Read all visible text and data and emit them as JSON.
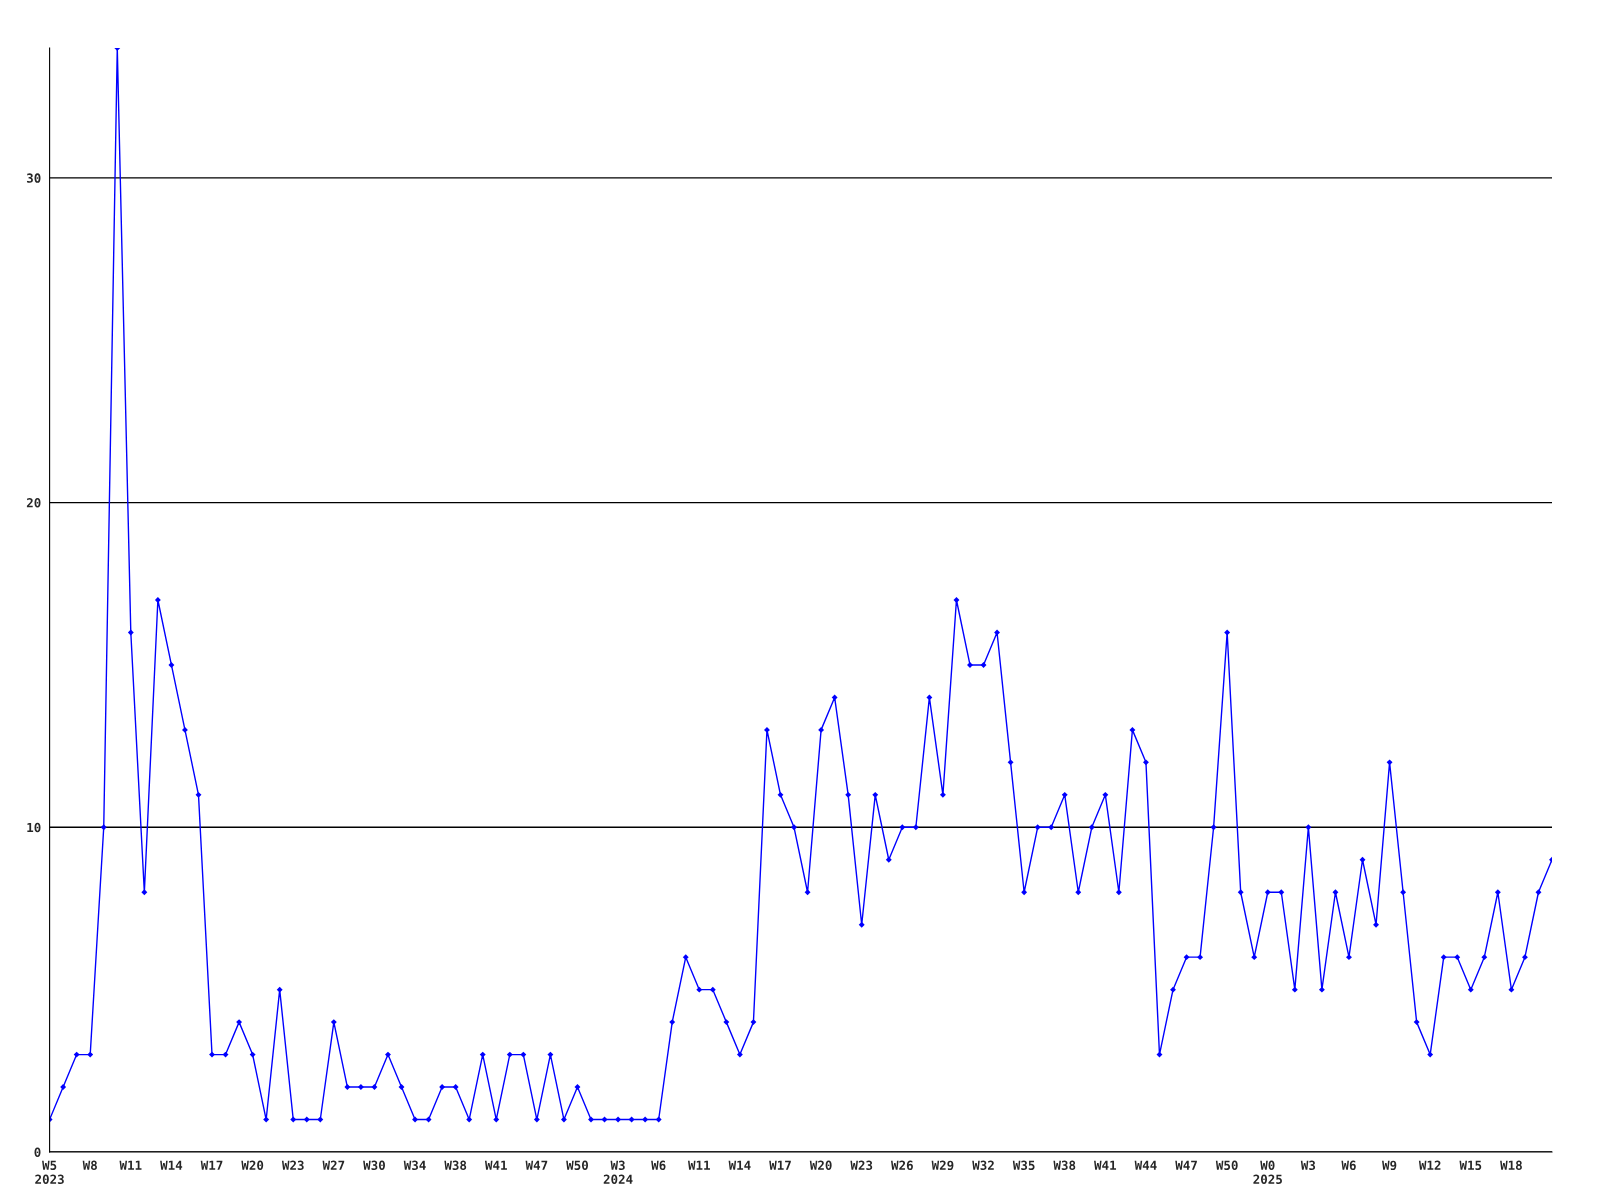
{
  "chart_data": {
    "type": "line",
    "categories": [
      "W5\n2023",
      null,
      null,
      "W8",
      null,
      null,
      "W11",
      null,
      null,
      "W14",
      null,
      null,
      "W17",
      null,
      null,
      "W20",
      null,
      null,
      "W23",
      null,
      null,
      "W27",
      null,
      null,
      "W30",
      null,
      null,
      "W34",
      null,
      null,
      "W38",
      null,
      null,
      "W41",
      null,
      null,
      "W47",
      null,
      null,
      "W50",
      null,
      null,
      "W3\n2024",
      null,
      null,
      "W6",
      null,
      null,
      "W11",
      null,
      null,
      "W14",
      null,
      null,
      "W17",
      null,
      null,
      "W20",
      null,
      null,
      "W23",
      null,
      null,
      "W26",
      null,
      null,
      "W29",
      null,
      null,
      "W32",
      null,
      null,
      "W35",
      null,
      null,
      "W38",
      null,
      null,
      "W41",
      null,
      null,
      "W44",
      null,
      null,
      "W47",
      null,
      null,
      "W50",
      null,
      null,
      "W0\n2025",
      null,
      null,
      "W3",
      null,
      null,
      "W6",
      null,
      null,
      "W9",
      null,
      null,
      "W12",
      null,
      null,
      "W15",
      null,
      null,
      "W18",
      null,
      null,
      null
    ],
    "series": [
      {
        "color": "#0000ff",
        "values": [
          1,
          2,
          3,
          3,
          10,
          34,
          16,
          8,
          17,
          15,
          13,
          11,
          3,
          3,
          4,
          3,
          1,
          5,
          1,
          1,
          1,
          4,
          2,
          2,
          2,
          3,
          2,
          1,
          1,
          2,
          2,
          1,
          3,
          1,
          3,
          3,
          1,
          3,
          1,
          2,
          1,
          1,
          1,
          1,
          1,
          1,
          4,
          6,
          5,
          5,
          4,
          3,
          4,
          13,
          11,
          10,
          8,
          13,
          14,
          11,
          7,
          11,
          9,
          10,
          10,
          14,
          11,
          17,
          15,
          15,
          16,
          12,
          8,
          10,
          10,
          11,
          8,
          10,
          11,
          8,
          13,
          12,
          3,
          5,
          6,
          6,
          10,
          16,
          8,
          6,
          8,
          8,
          5,
          10,
          5,
          8,
          6,
          9,
          7,
          12,
          8,
          4,
          3,
          6,
          6,
          5,
          6,
          8,
          5,
          6,
          8,
          9
        ]
      }
    ],
    "ylim": [
      0,
      34
    ],
    "yticks": [
      0,
      10,
      20,
      30
    ],
    "grid": "y",
    "marker": "diamond",
    "line_style": "solid"
  }
}
